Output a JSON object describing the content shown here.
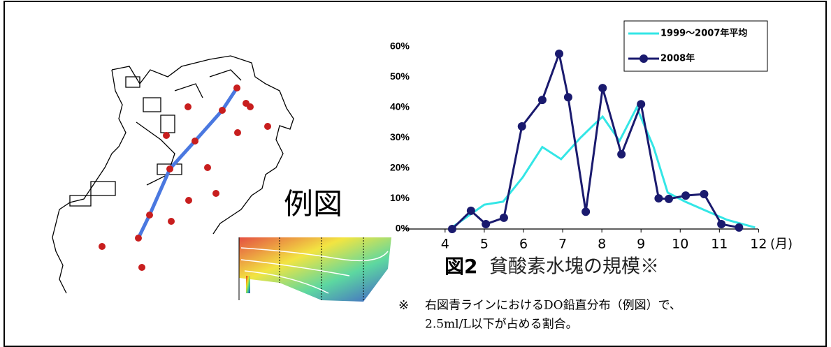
{
  "chart_data": {
    "type": "line",
    "x_label": "(月)",
    "xlim": [
      3.2,
      12.1
    ],
    "xticks": [
      4,
      5,
      6,
      7,
      8,
      9,
      10,
      11,
      12
    ],
    "ylim": [
      0,
      60
    ],
    "yticks": [
      {
        "value": 0,
        "label": "0%"
      },
      {
        "value": 10,
        "label": "10%"
      },
      {
        "value": 20,
        "label": "20%"
      },
      {
        "value": 30,
        "label": "30%"
      },
      {
        "value": 40,
        "label": "40%"
      },
      {
        "value": 50,
        "label": "50%"
      },
      {
        "value": 60,
        "label": "60%"
      }
    ],
    "legend": "upper right",
    "series": [
      {
        "name": "1999～2007年平均",
        "color": "#33e6e6",
        "marker": false,
        "x": [
          4.23,
          5.0,
          5.48,
          5.98,
          6.48,
          6.96,
          7.45,
          7.77,
          8.02,
          8.45,
          8.89,
          9.32,
          9.68,
          10.13,
          10.66,
          11.2,
          11.91
        ],
        "values": [
          1,
          8,
          9,
          17,
          27,
          23,
          30,
          34,
          37,
          29,
          40,
          27,
          12,
          9,
          6,
          3,
          0.5
        ]
      },
      {
        "name": "2008年",
        "color": "#1a1a6e",
        "marker": true,
        "x": [
          4.18,
          4.66,
          5.04,
          5.5,
          5.96,
          6.48,
          6.91,
          7.14,
          7.59,
          8.02,
          8.5,
          9.0,
          9.45,
          9.71,
          10.14,
          10.61,
          11.05,
          11.5
        ],
        "values": [
          0,
          6,
          1.6,
          3.7,
          33.8,
          42.5,
          57.7,
          43.4,
          5.7,
          46.4,
          24.6,
          41.1,
          10.1,
          9.9,
          11,
          11.5,
          1.6,
          0.5
        ]
      }
    ]
  },
  "example_label": "例図",
  "caption": {
    "number": "図2",
    "text": "貧酸素水塊の規模※"
  },
  "note": {
    "mark": "※",
    "lines": [
      "右図青ラインにおけるDO鉛直分布（例図）で、",
      "2.5ml/L以下が占める割合。"
    ]
  }
}
